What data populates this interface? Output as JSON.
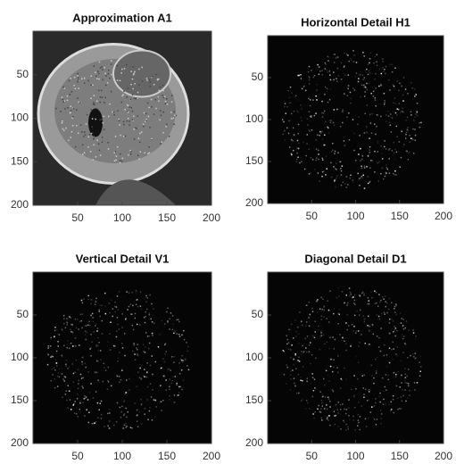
{
  "chart_data": [
    {
      "type": "image",
      "title": "Approximation A1",
      "xlim": [
        0,
        200
      ],
      "ylim": [
        0,
        200
      ],
      "xticks": [
        50,
        100,
        150,
        200
      ],
      "yticks": [
        50,
        100,
        150,
        200
      ],
      "y_reversed": true
    },
    {
      "type": "image",
      "title": "Horizontal Detail H1",
      "xlim": [
        0,
        200
      ],
      "ylim": [
        0,
        200
      ],
      "xticks": [
        50,
        100,
        150,
        200
      ],
      "yticks": [
        50,
        100,
        150,
        200
      ],
      "y_reversed": true
    },
    {
      "type": "image",
      "title": "Vertical Detail V1",
      "xlim": [
        0,
        200
      ],
      "ylim": [
        0,
        200
      ],
      "xticks": [
        50,
        100,
        150,
        200
      ],
      "yticks": [
        50,
        100,
        150,
        200
      ],
      "y_reversed": true
    },
    {
      "type": "image",
      "title": "Diagonal Detail D1",
      "xlim": [
        0,
        200
      ],
      "ylim": [
        0,
        200
      ],
      "xticks": [
        50,
        100,
        150,
        200
      ],
      "yticks": [
        50,
        100,
        150,
        200
      ],
      "y_reversed": true
    }
  ]
}
